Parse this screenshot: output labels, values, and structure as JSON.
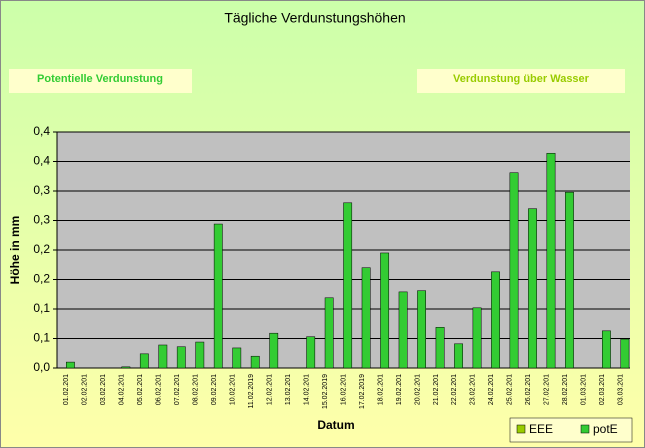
{
  "chart_data": {
    "type": "bar",
    "title": "Tägliche Verdunstungshöhen",
    "annotations": [
      "Potentielle Verdunstung",
      "Verdunstung über Wasser"
    ],
    "xlabel": "Datum",
    "ylabel": "Höhe in mm",
    "categories": [
      "01.02.201",
      "02.02.201",
      "03.02.201",
      "04.02.201",
      "05.02.201",
      "06.02.201",
      "07.02.201",
      "08.02.201",
      "09.02.201",
      "10.02.201",
      "11.02.2019",
      "12.02.201",
      "13.02.201",
      "14.02.201",
      "15.02.2019",
      "16.02.201",
      "17.02.2019",
      "18.02.201",
      "19.02.201",
      "20.02.201",
      "21.02.201",
      "22.02.201",
      "23.02.201",
      "24.02.201",
      "25.02.201",
      "26.02.201",
      "27.02.201",
      "28.02.201",
      "01.03.201",
      "02.03.201",
      "03.03.201"
    ],
    "series": [
      {
        "name": "EEE",
        "color": "#99cc00",
        "values": [
          null,
          null,
          null,
          null,
          null,
          null,
          null,
          null,
          null,
          null,
          null,
          null,
          null,
          null,
          null,
          null,
          null,
          null,
          null,
          null,
          null,
          null,
          null,
          null,
          null,
          null,
          null,
          null,
          null,
          null,
          null
        ]
      },
      {
        "name": "potE",
        "color": "#33cc33",
        "values": [
          0.01,
          0,
          0,
          0.002,
          0.024,
          0.039,
          0.036,
          0.044,
          0.244,
          0.034,
          0.02,
          0.059,
          0,
          0.053,
          0.119,
          0.28,
          0.17,
          0.195,
          0.129,
          0.131,
          0.069,
          0.041,
          0.102,
          0.163,
          0.331,
          0.27,
          0.364,
          0.298,
          0,
          0.063,
          0.049
        ]
      }
    ],
    "ylim": [
      0,
      0.4
    ],
    "yticks": [
      {
        "value": 0,
        "label": "0,0"
      },
      {
        "value": 0.05,
        "label": "0,1"
      },
      {
        "value": 0.1,
        "label": "0,1"
      },
      {
        "value": 0.15,
        "label": "0,2"
      },
      {
        "value": 0.2,
        "label": "0,2"
      },
      {
        "value": 0.25,
        "label": "0,3"
      },
      {
        "value": 0.3,
        "label": "0,3"
      },
      {
        "value": 0.35,
        "label": "0,4"
      },
      {
        "value": 0.4,
        "label": "0,4"
      }
    ],
    "grid": true,
    "legend": "bottom-right"
  }
}
